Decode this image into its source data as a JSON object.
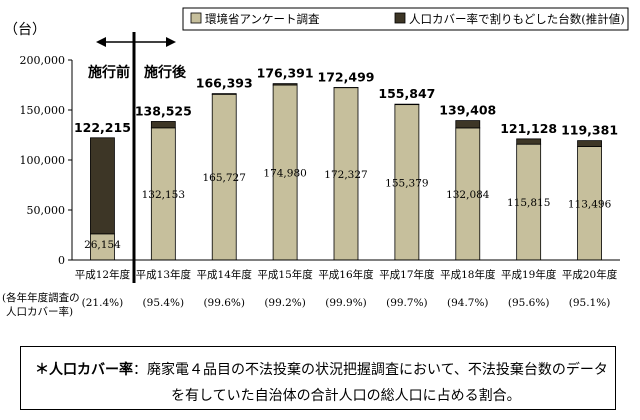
{
  "chart_data": {
    "type": "bar",
    "unit_label": "（台）",
    "categories": [
      "平成12年度",
      "平成13年度",
      "平成14年度",
      "平成15年度",
      "平成16年度",
      "平成17年度",
      "平成18年度",
      "平成19年度",
      "平成20年度"
    ],
    "coverage_label": "(各年年度調査の\n人口カバー率)",
    "coverage": [
      "(21.4%)",
      "(95.4%)",
      "(99.6%)",
      "(99.2%)",
      "(99.9%)",
      "(99.7%)",
      "(94.7%)",
      "(95.6%)",
      "(95.1%)"
    ],
    "series": [
      {
        "name": "環境省アンケート調査",
        "values": [
          26154,
          132153,
          165727,
          174980,
          172327,
          155379,
          132084,
          115815,
          113496
        ],
        "color": "#c6bf9c"
      },
      {
        "name": "人口カバー率で割りもどした台数(推計値)",
        "values": [
          96061,
          6372,
          666,
          1411,
          172,
          468,
          7324,
          5313,
          5885
        ],
        "color": "#3d3626"
      }
    ],
    "totals": [
      122215,
      138525,
      166393,
      176391,
      172499,
      155847,
      139408,
      121128,
      119381
    ],
    "segment_labels": [
      "26,154",
      "132,153",
      "165,727",
      "174,980",
      "172,327",
      "155,379",
      "132,084",
      "115,815",
      "113,496"
    ],
    "total_labels": [
      "122,215",
      "138,525",
      "166,393",
      "176,391",
      "172,499",
      "155,847",
      "139,408",
      "121,128",
      "119,381"
    ],
    "ylim": [
      0,
      200000
    ],
    "yticks": [
      0,
      50000,
      100000,
      150000,
      200000
    ],
    "ytick_labels": [
      "0",
      "50,000",
      "100,000",
      "150,000",
      "200,000"
    ],
    "annotations": {
      "before": "施行前",
      "after": "施行後"
    },
    "legend_position": "top-right",
    "grid": false
  },
  "note": {
    "head": "＊人口カバー率",
    "line1": "：廃家電４品目の不法投棄の状況把握調査において、不法投棄台数のデータ",
    "line2": "を有していた自治体の合計人口の総人口に占める割合。"
  }
}
